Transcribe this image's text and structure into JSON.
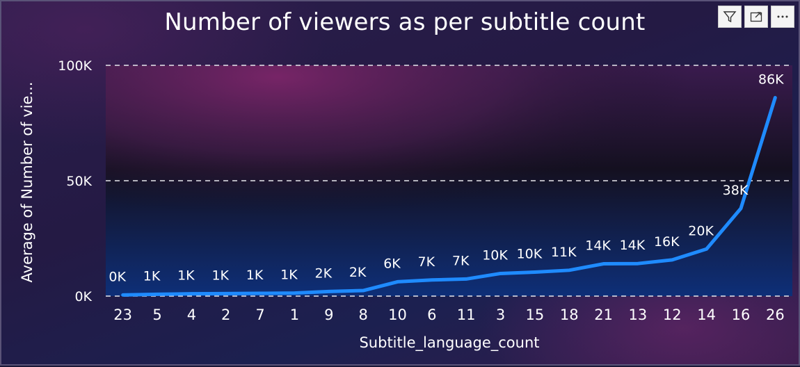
{
  "toolbar": {
    "filter_icon": "filter-icon",
    "focus_icon": "focus-mode-icon",
    "more_icon": "more-options-icon"
  },
  "chart_data": {
    "type": "line",
    "title": "Number of viewers as per subtitle count",
    "xlabel": "Subtitle_language_count",
    "ylabel": "Average of Number of vie...",
    "categories": [
      "23",
      "5",
      "4",
      "2",
      "7",
      "1",
      "9",
      "8",
      "10",
      "6",
      "11",
      "3",
      "15",
      "18",
      "21",
      "13",
      "12",
      "14",
      "16",
      "26"
    ],
    "series": [
      {
        "values": [
          500,
          800,
          1000,
          1100,
          1200,
          1300,
          2000,
          2400,
          6200,
          7000,
          7400,
          9800,
          10400,
          11200,
          14000,
          14100,
          15700,
          20400,
          38000,
          86000
        ],
        "labels": [
          "0K",
          "1K",
          "1K",
          "1K",
          "1K",
          "1K",
          "2K",
          "2K",
          "6K",
          "7K",
          "7K",
          "10K",
          "10K",
          "11K",
          "14K",
          "14K",
          "16K",
          "20K",
          "38K",
          "86K"
        ],
        "color": "#1f8bff"
      }
    ],
    "ylim": [
      0,
      100000
    ],
    "yticks": [
      0,
      50000,
      100000
    ],
    "ytick_labels": [
      "0K",
      "50K",
      "100K"
    ],
    "grid": true,
    "legend": "none"
  }
}
